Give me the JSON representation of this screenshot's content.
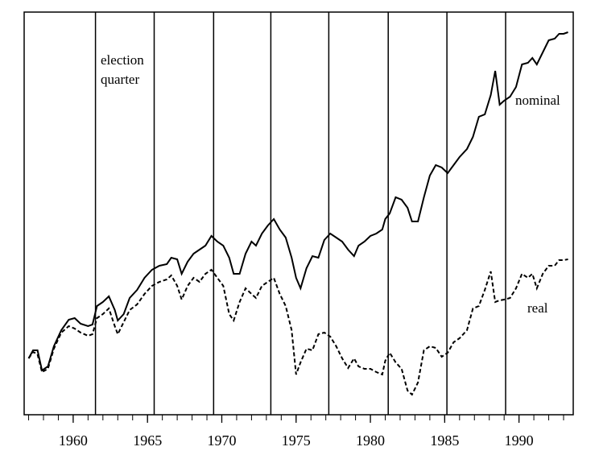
{
  "chart_data": {
    "type": "line",
    "annotation": [
      "election",
      "quarter"
    ],
    "x": [
      1957.0,
      1957.3,
      1957.6,
      1957.9,
      1958.3,
      1958.7,
      1959.2,
      1959.7,
      1960.1,
      1960.5,
      1961.0,
      1961.3,
      1961.6,
      1962.0,
      1962.4,
      1962.8,
      1963.0,
      1963.4,
      1963.8,
      1964.3,
      1964.8,
      1965.3,
      1965.8,
      1966.3,
      1966.6,
      1967.0,
      1967.3,
      1967.7,
      1968.1,
      1968.5,
      1968.9,
      1969.3,
      1969.7,
      1970.1,
      1970.5,
      1970.8,
      1971.2,
      1971.6,
      1972.0,
      1972.3,
      1972.7,
      1973.1,
      1973.5,
      1973.9,
      1974.3,
      1974.7,
      1975.0,
      1975.3,
      1975.7,
      1976.1,
      1976.5,
      1976.9,
      1977.3,
      1977.7,
      1978.1,
      1978.5,
      1978.9,
      1979.2,
      1979.6,
      1980.0,
      1980.4,
      1980.8,
      1981.0,
      1981.3,
      1981.7,
      1982.1,
      1982.5,
      1982.8,
      1983.2,
      1983.6,
      1984.0,
      1984.4,
      1984.8,
      1985.2,
      1985.6,
      1986.0,
      1986.5,
      1986.9,
      1987.3,
      1987.7,
      1988.1,
      1988.4,
      1988.7,
      1989.0,
      1989.4,
      1989.8,
      1990.2,
      1990.6,
      1990.9,
      1991.2,
      1991.6,
      1992.0,
      1992.4,
      1992.7,
      1993.0,
      1993.3
    ],
    "series": [
      {
        "name": "nominal",
        "color": "#000000",
        "dashed": false,
        "values": [
          14,
          16,
          16,
          11,
          12,
          17,
          21,
          23.6,
          24,
          22.6,
          22,
          22.4,
          27,
          28,
          29.4,
          26,
          23.4,
          25,
          29,
          31,
          34,
          36,
          37,
          37.4,
          39,
          38.6,
          35,
          38,
          40,
          41,
          42,
          44.4,
          43,
          42,
          39,
          35,
          35,
          40,
          43,
          42,
          45,
          47,
          48.6,
          46,
          44,
          39,
          34,
          31.4,
          36.4,
          39.4,
          39,
          43.4,
          45,
          44,
          43,
          41,
          39.4,
          42,
          43,
          44.4,
          45,
          46,
          48.6,
          50,
          54,
          53.4,
          51.4,
          48,
          48,
          54,
          59.4,
          62,
          61.4,
          60,
          62,
          64,
          66,
          69,
          74,
          74.6,
          79.4,
          85.4,
          77,
          78,
          79,
          81.4,
          87,
          87.4,
          88.6,
          87,
          90,
          93,
          93.4,
          94.6,
          94.6,
          95
        ]
      },
      {
        "name": "real",
        "color": "#000000",
        "dashed": true,
        "values": [
          14,
          15.6,
          15,
          10.6,
          11.4,
          16.4,
          20.4,
          22,
          21.4,
          20.4,
          19.6,
          20,
          24,
          25,
          26.4,
          22,
          20,
          23,
          26,
          27.4,
          30,
          32,
          33,
          33.6,
          34.6,
          32,
          28.6,
          32,
          34,
          33,
          35,
          36,
          34,
          32,
          25,
          23.4,
          28,
          31.4,
          30,
          29,
          32,
          33,
          34,
          30,
          27,
          21,
          10,
          13,
          16.4,
          16,
          20,
          20.4,
          19.4,
          17,
          14,
          11.6,
          14,
          12,
          11.4,
          11.4,
          10.6,
          10,
          13.4,
          15.4,
          13,
          11.4,
          6,
          5,
          8,
          16,
          17,
          16.6,
          14.4,
          15.4,
          18,
          19,
          21,
          26.4,
          27,
          31,
          35.6,
          28,
          28.4,
          28.6,
          29,
          31.4,
          35,
          34,
          35,
          31.4,
          35,
          37,
          37,
          38.4,
          38.4,
          38.6
        ]
      }
    ],
    "election_quarters": [
      1961.5,
      1965.45,
      1969.45,
      1973.3,
      1977.2,
      1981.2,
      1985.15,
      1989.1
    ],
    "xlim": [
      1956.7,
      1993.65
    ],
    "ylim": [
      0,
      100
    ],
    "xticks": [
      1960,
      1965,
      1970,
      1975,
      1980,
      1985,
      1990
    ],
    "xminor": [
      1957,
      1958,
      1959,
      1960,
      1961,
      1962,
      1963,
      1964,
      1965,
      1966,
      1967,
      1968,
      1969,
      1970,
      1971,
      1972,
      1973,
      1974,
      1975,
      1976,
      1977,
      1978,
      1979,
      1980,
      1981,
      1982,
      1983,
      1984,
      1985,
      1986,
      1987,
      1988,
      1989,
      1990,
      1991,
      1992,
      1993
    ]
  }
}
